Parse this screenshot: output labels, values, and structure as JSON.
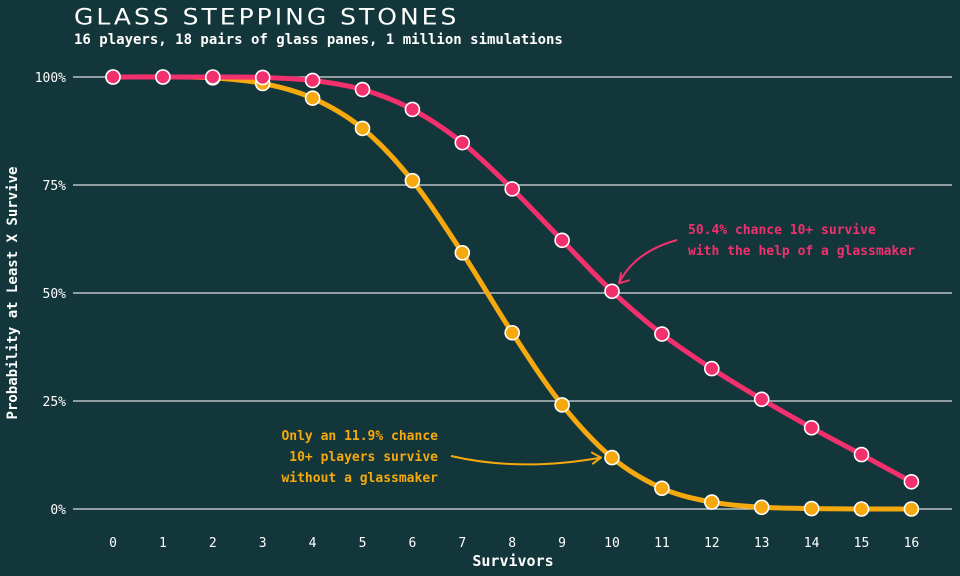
{
  "title": "GLASS STEPPING STONES",
  "subtitle": "16 players, 18 pairs of glass panes, 1 million simulations",
  "colors": {
    "background": "#12363a",
    "with_glassmaker": "#f2306e",
    "without_glassmaker": "#f5a90f",
    "grid": "#d8dcdc",
    "text": "#ffffff"
  },
  "chart_data": {
    "type": "line",
    "title": "GLASS STEPPING STONES",
    "subtitle": "16 players, 18 pairs of glass panes, 1 million simulations",
    "xlabel": "Survivors",
    "ylabel": "Probability at Least X Survive",
    "x": [
      0,
      1,
      2,
      3,
      4,
      5,
      6,
      7,
      8,
      9,
      10,
      11,
      12,
      13,
      14,
      15,
      16
    ],
    "x_tick_labels": [
      "0",
      "1",
      "2",
      "3",
      "4",
      "5",
      "6",
      "7",
      "8",
      "9",
      "10",
      "11",
      "12",
      "13",
      "14",
      "15",
      "16"
    ],
    "y_tick_labels": [
      "0%",
      "25%",
      "50%",
      "75%",
      "100%"
    ],
    "y_ticks": [
      0,
      0.25,
      0.5,
      0.75,
      1.0
    ],
    "ylim": [
      0,
      1
    ],
    "grid": "horizontal",
    "series": [
      {
        "key": "with_glassmaker",
        "color": "#f2306e",
        "values": [
          1.0,
          1.0,
          1.0,
          0.999,
          0.992,
          0.971,
          0.925,
          0.848,
          0.741,
          0.622,
          0.504,
          0.405,
          0.325,
          0.254,
          0.188,
          0.126,
          0.063
        ]
      },
      {
        "key": "without_glassmaker",
        "color": "#f5a90f",
        "values": [
          1.0,
          1.0,
          0.998,
          0.985,
          0.951,
          0.881,
          0.76,
          0.593,
          0.408,
          0.241,
          0.119,
          0.048,
          0.016,
          0.004,
          0.001,
          0.0,
          0.0
        ]
      }
    ],
    "annotations": [
      {
        "series": "with_glassmaker",
        "lines": [
          "50.4% chance 10+ survive",
          "with the help of a glassmaker"
        ],
        "point_x": 10,
        "align": "left"
      },
      {
        "series": "without_glassmaker",
        "lines": [
          "Only an 11.9% chance",
          "10+ players survive",
          "without a glassmaker"
        ],
        "point_x": 10,
        "align": "right"
      }
    ]
  }
}
